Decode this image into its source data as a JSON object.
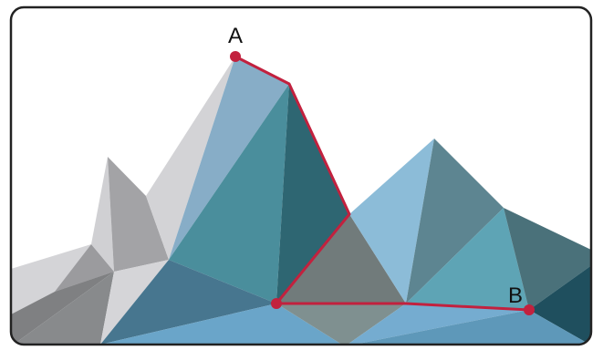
{
  "points": {
    "a": {
      "label": "A"
    },
    "b": {
      "label": "B"
    }
  },
  "colors": {
    "route": "#c2213e",
    "frame": "#222222",
    "background": "#ffffff"
  }
}
